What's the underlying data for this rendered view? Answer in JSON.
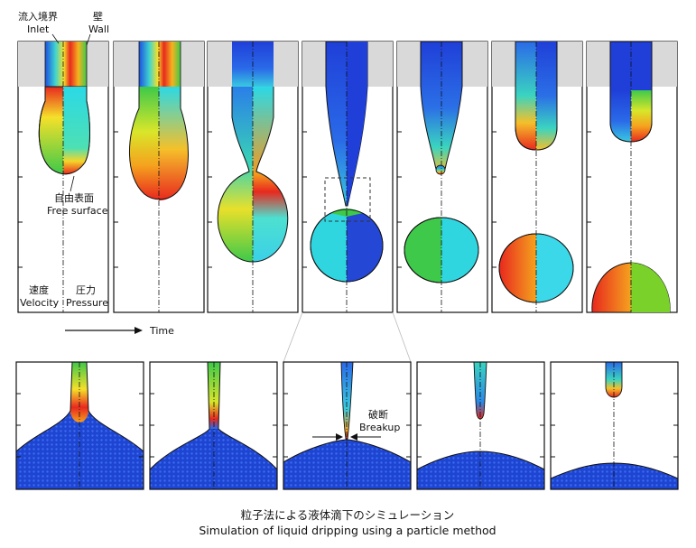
{
  "labels": {
    "inlet_jp": "流入境界",
    "inlet_en": "Inlet",
    "wall_jp": "壁",
    "wall_en": "Wall",
    "free_surface_jp": "自由表面",
    "free_surface_en": "Free surface",
    "velocity_jp": "速度",
    "velocity_en": "Velocity",
    "pressure_jp": "圧力",
    "pressure_en": "Pressure",
    "time": "Time",
    "breakup_jp": "破断",
    "breakup_en": "Breakup"
  },
  "caption": {
    "jp": "粒子法による液体滴下のシミュレーション",
    "en": "Simulation of liquid dripping using a particle method"
  },
  "colors": {
    "wall_gray": "#d9d9d9",
    "jet_red": "#e8281e",
    "jet_blue": "#1f3fd8",
    "particle_blue": "#1a3cc8"
  },
  "sequence": {
    "top_frames": 7,
    "bottom_frames": 5
  }
}
